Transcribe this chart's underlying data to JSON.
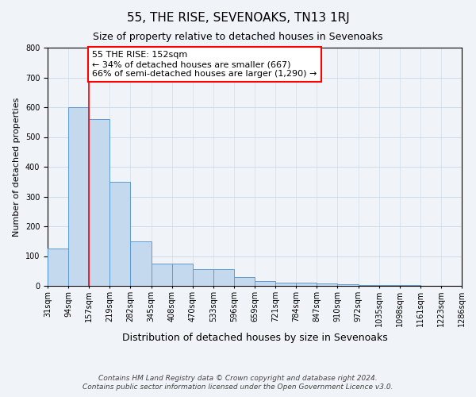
{
  "title": "55, THE RISE, SEVENOAKS, TN13 1RJ",
  "subtitle": "Size of property relative to detached houses in Sevenoaks",
  "xlabel": "Distribution of detached houses by size in Sevenoaks",
  "ylabel": "Number of detached properties",
  "bar_values": [
    125,
    600,
    560,
    350,
    150,
    75,
    75,
    55,
    55,
    30,
    15,
    12,
    10,
    7,
    5,
    4,
    3,
    2,
    1,
    1
  ],
  "categories": [
    "31sqm",
    "94sqm",
    "157sqm",
    "219sqm",
    "282sqm",
    "345sqm",
    "408sqm",
    "470sqm",
    "533sqm",
    "596sqm",
    "659sqm",
    "721sqm",
    "784sqm",
    "847sqm",
    "910sqm",
    "972sqm",
    "1035sqm",
    "1098sqm",
    "1161sqm",
    "1223sqm",
    "1286sqm"
  ],
  "bar_color": "#c5d9ee",
  "bar_edge_color": "#5b9bd5",
  "red_line_index": 2,
  "annotation_text": "55 THE RISE: 152sqm\n← 34% of detached houses are smaller (667)\n66% of semi-detached houses are larger (1,290) →",
  "annotation_box_facecolor": "white",
  "annotation_box_edgecolor": "red",
  "ylim": [
    0,
    800
  ],
  "yticks": [
    0,
    100,
    200,
    300,
    400,
    500,
    600,
    700,
    800
  ],
  "bg_color": "#f0f4f8",
  "grid_color": "#c8d8e8",
  "title_fontsize": 11,
  "subtitle_fontsize": 9,
  "xlabel_fontsize": 9,
  "ylabel_fontsize": 8,
  "tick_fontsize": 7,
  "annotation_fontsize": 8,
  "footer_fontsize": 6.5,
  "footer_line1": "Contains HM Land Registry data © Crown copyright and database right 2024.",
  "footer_line2": "Contains public sector information licensed under the Open Government Licence v3.0."
}
